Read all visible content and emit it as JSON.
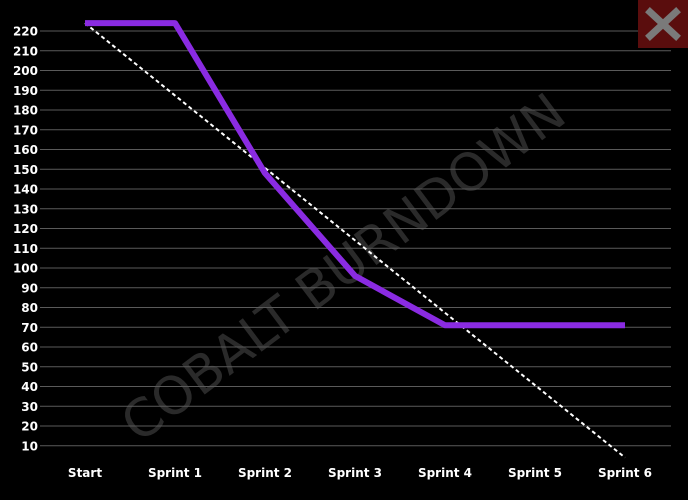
{
  "chart_data": {
    "type": "line",
    "watermark": "COBALT BURNDOWN",
    "categories": [
      "Start",
      "Sprint 1",
      "Sprint 2",
      "Sprint 3",
      "Sprint 4",
      "Sprint 5",
      "Sprint 6"
    ],
    "y_ticks": [
      10,
      20,
      30,
      40,
      50,
      60,
      70,
      80,
      90,
      100,
      110,
      120,
      130,
      140,
      150,
      160,
      170,
      180,
      190,
      200,
      210,
      220
    ],
    "ylim": [
      0,
      225
    ],
    "grid": true,
    "series": [
      {
        "role": "actual",
        "color": "#8a2be2",
        "style": "solid",
        "points": [
          {
            "x": "Start",
            "y": 224
          },
          {
            "x": "Sprint 1",
            "y": 224
          },
          {
            "x": "Sprint 2",
            "y": 148
          },
          {
            "x": "Sprint 3",
            "y": 96
          },
          {
            "x": "Sprint 4",
            "y": 71
          },
          {
            "x": "Sprint 5",
            "y": 71
          },
          {
            "x": "Sprint 6",
            "y": 71
          }
        ]
      },
      {
        "role": "ideal",
        "color": "#ffffff",
        "style": "dashed",
        "points": [
          {
            "x": "Start",
            "y": 224
          },
          {
            "x": "Sprint 6",
            "y": 4
          }
        ]
      }
    ]
  },
  "close_icon": "close-icon",
  "colors": {
    "background": "#000000",
    "grid": "#5a5a5a",
    "close_button_bg": "#5a0d0d",
    "close_icon": "#7a7a7a",
    "watermark": "#2a2a2a"
  }
}
